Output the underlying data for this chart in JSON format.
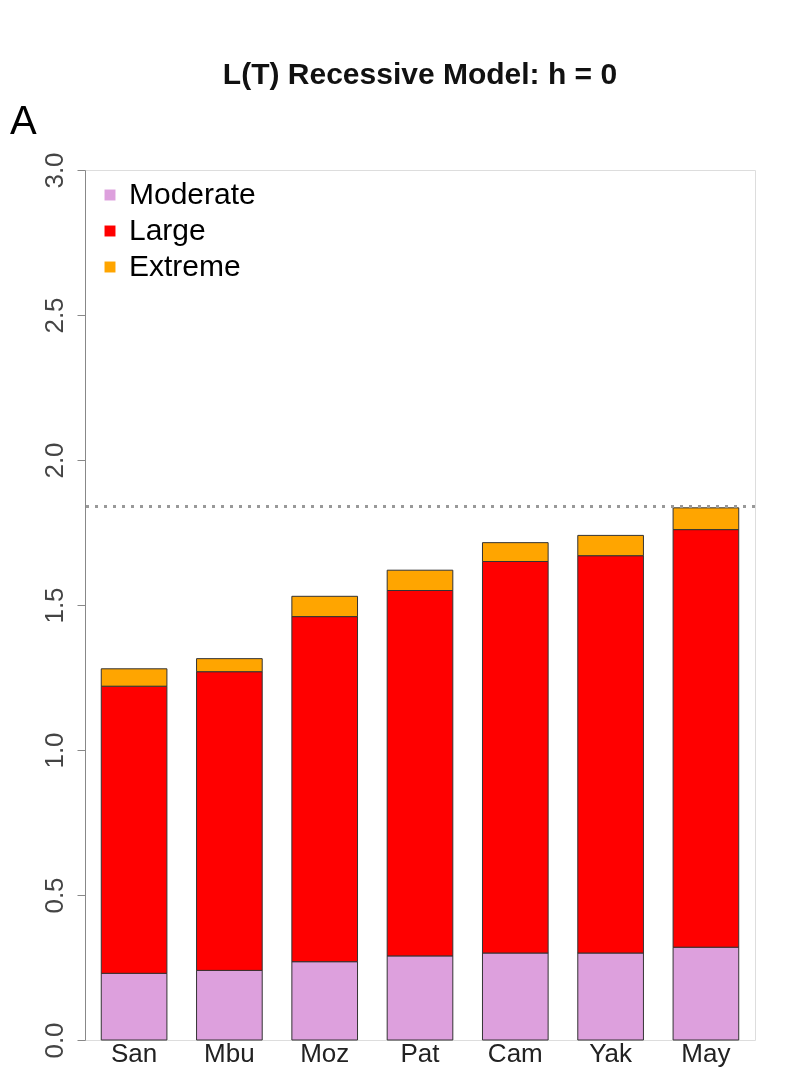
{
  "chart_data": {
    "type": "bar",
    "title": "L(T) Recessive Model: h = 0",
    "annotations": [
      "A"
    ],
    "categories": [
      "San",
      "Mbu",
      "Moz",
      "Pat",
      "Cam",
      "Yak",
      "May"
    ],
    "stacked": true,
    "series": [
      {
        "name": "Moderate",
        "color": "#dda0dd",
        "values": [
          0.23,
          0.24,
          0.27,
          0.29,
          0.3,
          0.3,
          0.32
        ]
      },
      {
        "name": "Large",
        "color": "#ff0000",
        "values": [
          0.99,
          1.03,
          1.19,
          1.26,
          1.35,
          1.37,
          1.44
        ]
      },
      {
        "name": "Extreme",
        "color": "#ffa500",
        "values": [
          0.06,
          0.045,
          0.07,
          0.07,
          0.065,
          0.07,
          0.075
        ]
      }
    ],
    "ylim": [
      0,
      3
    ],
    "yticks": [
      {
        "value": 0,
        "label": "0.0"
      },
      0.5,
      {
        "value": 1,
        "label": "1.0"
      },
      1.5,
      {
        "value": 2,
        "label": "2.0"
      },
      2.5,
      {
        "value": 3,
        "label": "3.0"
      }
    ],
    "ref_lines": [
      {
        "axis": "y",
        "value": 1.84,
        "color": "#999999",
        "line_style": "dotted"
      }
    ],
    "legend": "top left",
    "grid": false
  }
}
